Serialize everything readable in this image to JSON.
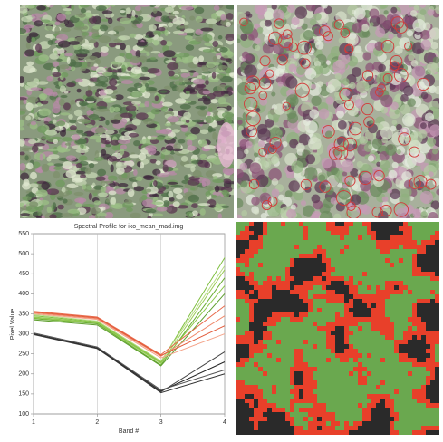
{
  "chart_data": {
    "type": "line",
    "title": "Spectral Profile for iko_mean_mad.img",
    "xlabel": "Band #",
    "ylabel": "Pixel Value",
    "x": [
      1,
      2,
      3,
      4
    ],
    "xlim": [
      1,
      4
    ],
    "xticks": [
      1,
      2,
      3,
      4
    ],
    "ylim": [
      100,
      550
    ],
    "yticks": [
      100,
      150,
      200,
      250,
      300,
      350,
      400,
      450,
      500,
      550
    ],
    "grid": "x",
    "series": [
      {
        "color": "#7fbf3f",
        "values": [
          345,
          330,
          230,
          490
        ]
      },
      {
        "color": "#9ccc5a",
        "values": [
          340,
          327,
          226,
          460
        ]
      },
      {
        "color": "#6aae32",
        "values": [
          338,
          325,
          222,
          440
        ]
      },
      {
        "color": "#8cc84b",
        "values": [
          342,
          328,
          228,
          420
        ]
      },
      {
        "color": "#5d9e2c",
        "values": [
          335,
          322,
          220,
          400
        ]
      },
      {
        "color": "#b5dc82",
        "values": [
          348,
          332,
          232,
          470
        ]
      },
      {
        "color": "#e8694a",
        "values": [
          356,
          342,
          248,
          370
        ]
      },
      {
        "color": "#f08a6c",
        "values": [
          352,
          338,
          244,
          345
        ]
      },
      {
        "color": "#e25a3a",
        "values": [
          354,
          340,
          246,
          320
        ]
      },
      {
        "color": "#f4a48a",
        "values": [
          350,
          336,
          240,
          300
        ]
      },
      {
        "color": "#222222",
        "values": [
          300,
          265,
          157,
          230
        ]
      },
      {
        "color": "#444444",
        "values": [
          298,
          263,
          155,
          255
        ]
      },
      {
        "color": "#555555",
        "values": [
          302,
          267,
          160,
          210
        ]
      },
      {
        "color": "#333333",
        "values": [
          299,
          264,
          153,
          200
        ]
      }
    ]
  }
}
